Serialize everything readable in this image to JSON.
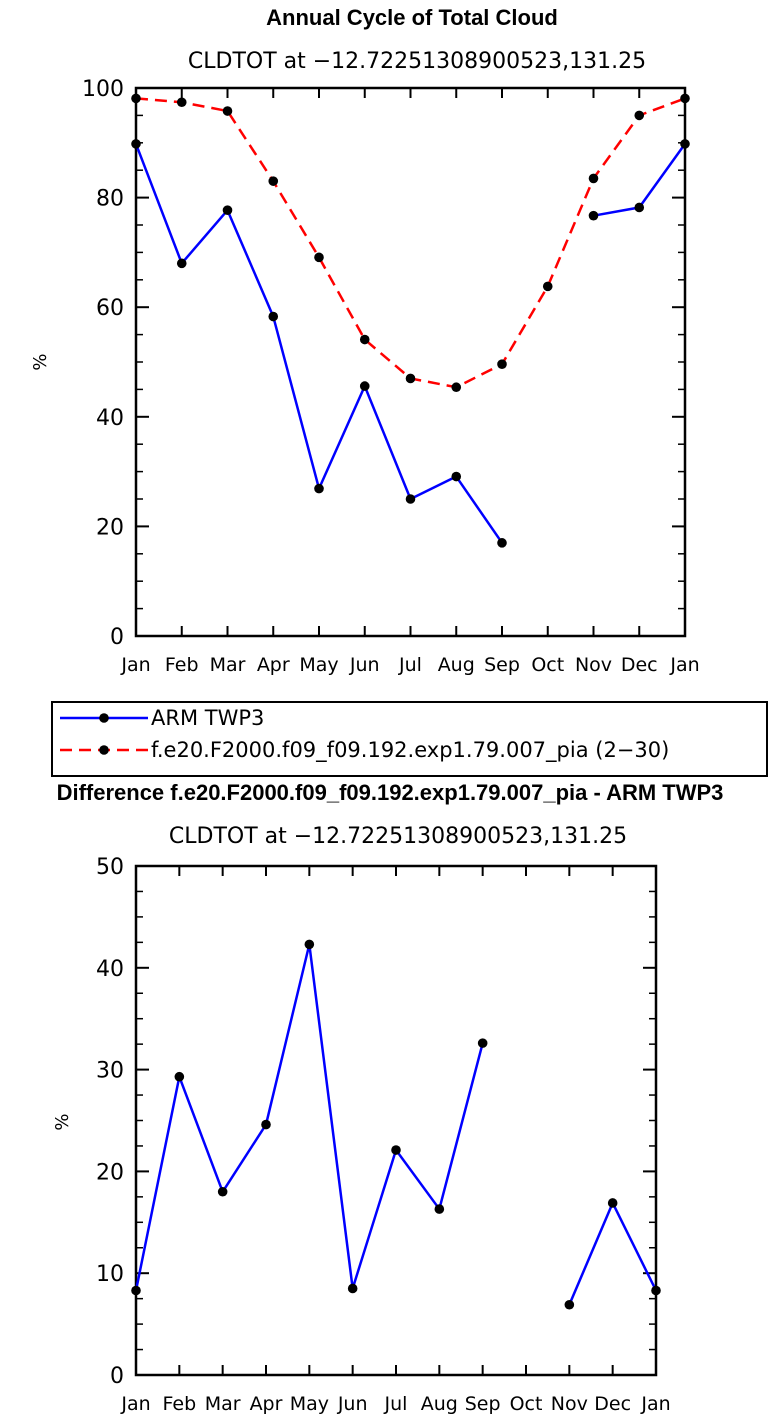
{
  "chart_data": [
    {
      "type": "line",
      "title": "Annual Cycle of Total Cloud",
      "subtitle": "CLDTOT at −12.72251308900523,131.25",
      "ylabel": "%",
      "ylim": [
        0,
        100
      ],
      "yticks": [
        0,
        20,
        40,
        60,
        80,
        100
      ],
      "categories": [
        "Jan",
        "Feb",
        "Mar",
        "Apr",
        "May",
        "Jun",
        "Jul",
        "Aug",
        "Sep",
        "Oct",
        "Nov",
        "Dec",
        "Jan"
      ],
      "series": [
        {
          "name": "ARM TWP3",
          "color": "#0000ff",
          "dash": "solid",
          "values": [
            89.8,
            68.0,
            77.7,
            58.3,
            26.9,
            45.6,
            25.0,
            29.1,
            17.0,
            null,
            76.7,
            78.2,
            89.8
          ]
        },
        {
          "name": "f.e20.F2000.f09_f09.192.exp1.79.007_pia (2−30)",
          "color": "#ff0000",
          "dash": "dashed",
          "values": [
            98.1,
            97.4,
            95.8,
            83.0,
            69.1,
            54.1,
            47.0,
            45.4,
            49.6,
            63.8,
            83.5,
            95.0,
            98.1
          ]
        }
      ],
      "legend_position": "below plot"
    },
    {
      "type": "line",
      "title": "Difference f.e20.F2000.f09_f09.192.exp1.79.007_pia - ARM TWP3",
      "subtitle": "CLDTOT at −12.72251308900523,131.25",
      "ylabel": "%",
      "ylim": [
        0,
        50
      ],
      "yticks": [
        0,
        10,
        20,
        30,
        40,
        50
      ],
      "categories": [
        "Jan",
        "Feb",
        "Mar",
        "Apr",
        "May",
        "Jun",
        "Jul",
        "Aug",
        "Sep",
        "Oct",
        "Nov",
        "Dec",
        "Jan"
      ],
      "series": [
        {
          "color": "#0000ff",
          "dash": "solid",
          "values": [
            8.3,
            29.3,
            18.0,
            24.6,
            42.3,
            8.5,
            22.1,
            16.3,
            32.6,
            null,
            6.9,
            16.9,
            8.3
          ]
        }
      ]
    }
  ]
}
